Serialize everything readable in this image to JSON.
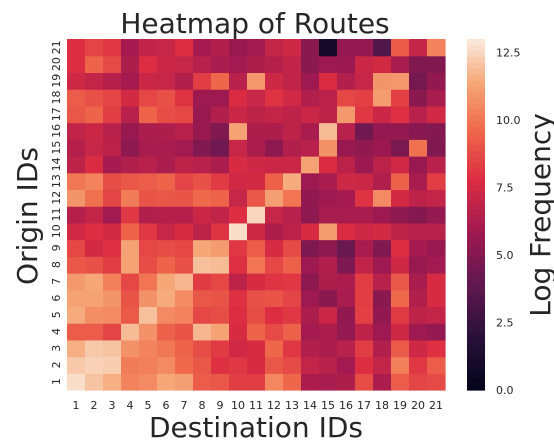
{
  "chart_data": {
    "type": "heatmap",
    "title": "Heatmap of Routes",
    "xlabel": "Destination IDs",
    "ylabel": "Origin IDs",
    "x_categories": [
      "1",
      "2",
      "3",
      "4",
      "5",
      "6",
      "7",
      "8",
      "9",
      "10",
      "11",
      "12",
      "13",
      "14",
      "15",
      "16",
      "17",
      "18",
      "19",
      "20",
      "21"
    ],
    "y_categories": [
      "1",
      "2",
      "3",
      "4",
      "5",
      "6",
      "7",
      "8",
      "9",
      "10",
      "11",
      "12",
      "13",
      "14",
      "15",
      "16",
      "17",
      "18",
      "19",
      "20",
      "21"
    ],
    "colorbar": {
      "label": "Log Frequency",
      "range": [
        0,
        13
      ],
      "ticks": [
        "0.0",
        "2.5",
        "5.0",
        "7.5",
        "10.0",
        "12.5"
      ],
      "tick_values": [
        0,
        2.5,
        5,
        7.5,
        10,
        12.5
      ],
      "colormap": "rocket"
    },
    "values_by_origin": {
      "1": [
        12.7,
        12.1,
        11.6,
        10.4,
        10.6,
        11.4,
        11.2,
        9.3,
        9.1,
        8.3,
        8.3,
        10.5,
        9.6,
        6.2,
        6.1,
        6.3,
        8.8,
        6.2,
        9.3,
        8.5,
        8.7
      ],
      "2": [
        12.2,
        12.4,
        12.3,
        10.2,
        10.3,
        10.6,
        9.7,
        9.1,
        7.9,
        8.1,
        7.6,
        9.1,
        8.7,
        7.0,
        6.6,
        5.9,
        7.8,
        7.0,
        10.3,
        8.1,
        9.3
      ],
      "3": [
        11.6,
        12.2,
        12.1,
        10.8,
        10.4,
        10.1,
        9.5,
        8.8,
        8.2,
        7.4,
        7.6,
        9.6,
        8.1,
        6.4,
        6.2,
        6.6,
        8.3,
        6.4,
        9.2,
        7.3,
        7.9
      ],
      "4": [
        9.3,
        9.3,
        8.5,
        11.9,
        10.8,
        9.4,
        9.0,
        11.8,
        11.3,
        7.6,
        9.5,
        8.7,
        9.4,
        6.0,
        6.2,
        5.5,
        6.8,
        5.8,
        7.3,
        5.8,
        5.5
      ],
      "5": [
        11.5,
        10.7,
        10.6,
        9.2,
        12.0,
        10.6,
        10.4,
        8.6,
        8.8,
        7.8,
        8.8,
        7.8,
        8.1,
        6.2,
        7.2,
        5.4,
        8.4,
        5.4,
        8.2,
        6.8,
        7.0
      ],
      "6": [
        11.3,
        11.3,
        10.9,
        9.0,
        10.8,
        11.5,
        10.6,
        9.1,
        9.0,
        7.9,
        8.9,
        9.0,
        8.5,
        5.8,
        5.2,
        6.1,
        8.3,
        5.2,
        9.7,
        6.4,
        7.6
      ],
      "7": [
        11.0,
        11.4,
        10.3,
        8.6,
        10.0,
        11.4,
        11.8,
        8.2,
        8.6,
        6.8,
        7.6,
        8.0,
        8.1,
        5.3,
        6.3,
        6.2,
        8.3,
        6.6,
        9.1,
        6.1,
        7.6
      ],
      "8": [
        9.1,
        8.9,
        8.3,
        11.3,
        8.8,
        9.5,
        8.9,
        12.0,
        11.9,
        7.9,
        10.0,
        8.6,
        9.4,
        5.8,
        6.4,
        4.8,
        6.9,
        5.8,
        7.3,
        5.6,
        5.9
      ],
      "9": [
        8.6,
        7.5,
        7.9,
        11.3,
        8.6,
        8.8,
        8.6,
        11.4,
        11.1,
        8.1,
        9.3,
        7.6,
        8.7,
        4.8,
        5.3,
        4.2,
        6.1,
        4.9,
        7.8,
        6.0,
        5.6
      ],
      "10": [
        7.4,
        7.8,
        7.5,
        9.5,
        8.1,
        7.1,
        7.6,
        6.8,
        8.0,
        12.7,
        7.3,
        6.3,
        6.7,
        7.6,
        11.1,
        7.7,
        7.3,
        7.5,
        6.8,
        6.6,
        6.6
      ],
      "11": [
        6.5,
        7.0,
        5.9,
        8.1,
        6.4,
        6.5,
        6.5,
        7.2,
        6.9,
        7.8,
        12.5,
        7.1,
        6.6,
        5.3,
        6.1,
        6.1,
        6.1,
        5.8,
        5.3,
        5.0,
        5.5
      ],
      "12": [
        10.9,
        9.9,
        8.5,
        10.2,
        9.0,
        9.1,
        9.0,
        9.7,
        9.5,
        7.1,
        9.1,
        11.2,
        10.0,
        5.4,
        5.8,
        6.0,
        8.0,
        10.6,
        7.5,
        6.8,
        7.0
      ],
      "13": [
        10.1,
        10.4,
        8.8,
        9.1,
        9.3,
        9.5,
        8.5,
        8.9,
        8.2,
        7.4,
        7.5,
        9.4,
        11.5,
        5.8,
        6.1,
        7.3,
        7.2,
        6.4,
        9.4,
        6.1,
        8.3
      ],
      "14": [
        6.8,
        7.7,
        6.0,
        6.4,
        6.6,
        6.2,
        6.8,
        6.6,
        6.2,
        7.6,
        7.3,
        7.2,
        7.2,
        11.3,
        7.7,
        6.7,
        5.7,
        6.7,
        7.4,
        5.6,
        6.6
      ],
      "15": [
        6.5,
        7.1,
        6.7,
        5.3,
        6.1,
        6.1,
        5.9,
        4.9,
        4.4,
        7.1,
        6.2,
        5.3,
        6.4,
        6.6,
        10.8,
        5.6,
        5.4,
        5.7,
        4.7,
        9.9,
        4.9
      ],
      "16": [
        6.9,
        7.2,
        6.6,
        5.6,
        6.2,
        6.3,
        6.6,
        5.6,
        4.9,
        11.3,
        6.3,
        6.3,
        6.8,
        6.1,
        11.9,
        6.6,
        4.4,
        5.5,
        5.5,
        5.1,
        5.0
      ],
      "17": [
        9.1,
        9.5,
        8.3,
        6.6,
        9.5,
        8.8,
        8.6,
        5.6,
        6.4,
        7.2,
        6.8,
        7.0,
        6.8,
        7.2,
        6.8,
        11.0,
        8.1,
        7.2,
        7.9,
        6.6,
        7.4
      ],
      "18": [
        9.3,
        8.9,
        8.5,
        7.5,
        8.6,
        8.9,
        8.0,
        5.8,
        5.8,
        7.7,
        7.1,
        8.0,
        7.4,
        6.4,
        6.7,
        8.6,
        8.4,
        11.1,
        8.4,
        5.2,
        6.1
      ],
      "19": [
        7.3,
        7.0,
        6.5,
        6.0,
        7.2,
        7.1,
        6.4,
        8.3,
        9.6,
        6.6,
        11.0,
        7.3,
        6.9,
        5.8,
        7.7,
        6.4,
        7.1,
        10.9,
        11.0,
        4.6,
        5.4
      ],
      "20": [
        7.8,
        9.5,
        8.7,
        6.3,
        7.8,
        7.2,
        7.1,
        6.6,
        6.1,
        5.9,
        6.3,
        6.5,
        6.9,
        5.2,
        5.8,
        5.7,
        7.2,
        7.5,
        6.1,
        4.9,
        4.9
      ],
      "21": [
        7.8,
        8.5,
        8.1,
        6.0,
        6.9,
        7.1,
        7.8,
        6.0,
        6.4,
        5.6,
        5.9,
        7.0,
        7.3,
        5.2,
        1.0,
        5.5,
        5.5,
        3.4,
        9.2,
        7.0,
        10.4
      ]
    }
  }
}
